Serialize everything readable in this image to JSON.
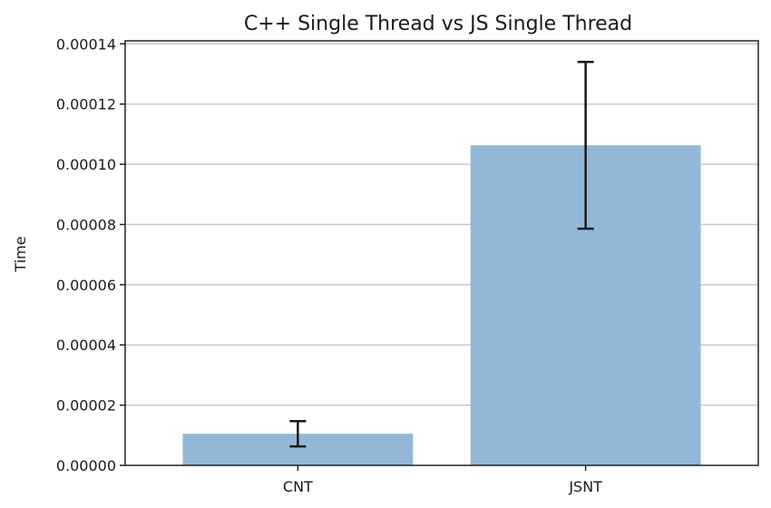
{
  "chart_data": {
    "type": "bar",
    "title": "C++ Single Thread vs JS Single Thread",
    "xlabel": "",
    "ylabel": "Time",
    "categories": [
      "CNT",
      "JSNT"
    ],
    "values": [
      1.05e-05,
      0.0001063
    ],
    "errors": [
      4.2e-06,
      2.77e-05
    ],
    "ylim": [
      0,
      0.000141
    ],
    "yticks": [
      0,
      2e-05,
      4e-05,
      6e-05,
      8e-05,
      0.0001,
      0.00012,
      0.00014
    ],
    "ytick_labels": [
      "0.00000",
      "0.00002",
      "0.00004",
      "0.00006",
      "0.00008",
      "0.00010",
      "0.00012",
      "0.00014"
    ],
    "grid": "y",
    "bar_color": "#93b7d6",
    "error_color": "#1a1a1a"
  }
}
